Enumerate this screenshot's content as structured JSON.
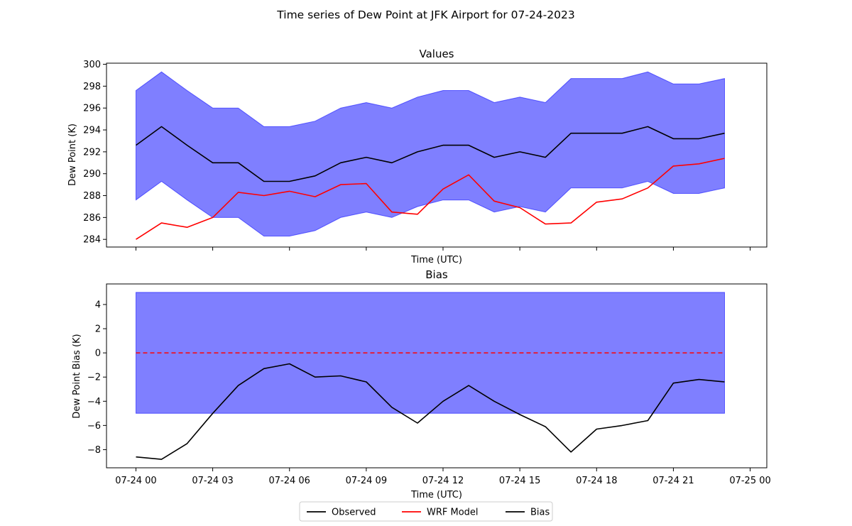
{
  "figure": {
    "suptitle": "Time series of Dew Point at JFK Airport for 07-24-2023",
    "legend": {
      "placement": "bottom-center",
      "entries": [
        {
          "label": "Observed",
          "color": "#000000"
        },
        {
          "label": "WRF Model",
          "color": "#ff0000"
        },
        {
          "label": "Bias",
          "color": "#000000"
        }
      ]
    }
  },
  "chart_data": [
    {
      "type": "line",
      "title": "Values",
      "xlabel": "Time (UTC)",
      "ylabel": "Dew Point (K)",
      "ylim": [
        283.3,
        300.1
      ],
      "yticks": [
        "284",
        "286",
        "288",
        "290",
        "292",
        "294",
        "296",
        "298",
        "300"
      ],
      "ytick_values": [
        284,
        286,
        288,
        290,
        292,
        294,
        296,
        298,
        300
      ],
      "x_hours": [
        0,
        1,
        2,
        3,
        4,
        5,
        6,
        7,
        8,
        9,
        10,
        11,
        12,
        13,
        14,
        15,
        16,
        17,
        18,
        19,
        20,
        21,
        22,
        23
      ],
      "grid": false,
      "series": [
        {
          "name": "Observed",
          "color": "#000000",
          "values": [
            292.6,
            294.3,
            292.6,
            291.0,
            291.0,
            289.3,
            289.3,
            289.8,
            291.0,
            291.5,
            291.0,
            292.0,
            292.6,
            292.6,
            291.5,
            292.0,
            291.5,
            293.7,
            293.7,
            293.7,
            294.3,
            293.2,
            293.2,
            293.7
          ]
        },
        {
          "name": "WRF Model",
          "color": "#ff0000",
          "values": [
            284.0,
            285.5,
            285.1,
            286.0,
            288.3,
            288.0,
            288.4,
            287.9,
            289.0,
            289.1,
            286.5,
            286.3,
            288.6,
            289.9,
            287.5,
            286.9,
            285.4,
            285.5,
            287.4,
            287.7,
            288.7,
            290.7,
            290.9,
            291.4
          ]
        }
      ],
      "band": {
        "color": "#0000ff",
        "opacity": 0.5,
        "lower_offset": -5,
        "upper_offset": 5
      }
    },
    {
      "type": "line",
      "title": "Bias",
      "xlabel": "Time (UTC)",
      "ylabel": "Dew Point Bias (K)",
      "ylim": [
        -9.5,
        5.7
      ],
      "yticks": [
        "−8",
        "−6",
        "−4",
        "−2",
        "0",
        "2",
        "4"
      ],
      "ytick_values": [
        -8,
        -6,
        -4,
        -2,
        0,
        2,
        4
      ],
      "xticks": [
        "07-24 00",
        "07-24 03",
        "07-24 06",
        "07-24 09",
        "07-24 12",
        "07-24 15",
        "07-24 18",
        "07-24 21",
        "07-25 00"
      ],
      "xtick_hours": [
        0,
        3,
        6,
        9,
        12,
        15,
        18,
        21,
        24
      ],
      "x_hours": [
        0,
        1,
        2,
        3,
        4,
        5,
        6,
        7,
        8,
        9,
        10,
        11,
        12,
        13,
        14,
        15,
        16,
        17,
        18,
        19,
        20,
        21,
        22,
        23
      ],
      "grid": false,
      "series": [
        {
          "name": "Bias",
          "color": "#000000",
          "values": [
            -8.6,
            -8.8,
            -7.5,
            -5.0,
            -2.7,
            -1.3,
            -0.9,
            -2.0,
            -1.9,
            -2.4,
            -4.5,
            -5.8,
            -4.0,
            -2.7,
            -4.0,
            -5.1,
            -6.1,
            -8.2,
            -6.3,
            -6.0,
            -5.6,
            -2.5,
            -2.2,
            -2.4
          ]
        }
      ],
      "band": {
        "color": "#0000ff",
        "opacity": 0.5,
        "lower": -5,
        "upper": 5
      },
      "reference_line": {
        "y": 0,
        "color": "#ff0000",
        "style": "dashed"
      }
    }
  ]
}
